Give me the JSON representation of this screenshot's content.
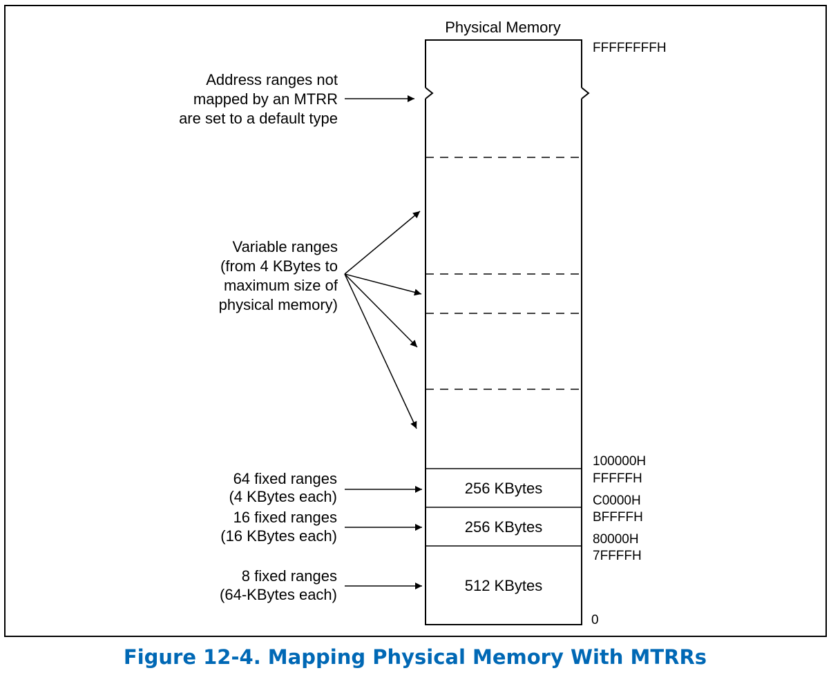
{
  "diagram": {
    "column_title": "Physical Memory",
    "labels": {
      "default_type": [
        "Address ranges not",
        "mapped by an MTRR",
        "are set to a default type"
      ],
      "variable_ranges": [
        "Variable ranges",
        "(from 4 KBytes to",
        "maximum size of",
        "physical memory)"
      ],
      "fixed_64": [
        "64 fixed ranges",
        "(4 KBytes each)"
      ],
      "fixed_16": [
        "16 fixed ranges",
        "(16 KBytes each)"
      ],
      "fixed_8": [
        "8 fixed ranges",
        "(64-KBytes each)"
      ]
    },
    "blocks": {
      "block_c0000": "256 KBytes",
      "block_80000": "256 KBytes",
      "block_0": "512 KBytes"
    },
    "addresses": {
      "top": "FFFFFFFFH",
      "a100000": "100000H",
      "affff": "FFFFFH",
      "ac0000": "C0000H",
      "abffff": "BFFFFH",
      "a80000": "80000H",
      "a7ffff": "7FFFFH",
      "zero": "0"
    }
  },
  "caption": "Figure 12-4.  Mapping Physical Memory With MTRRs",
  "colors": {
    "caption": "#0068B5",
    "line": "#000000"
  }
}
